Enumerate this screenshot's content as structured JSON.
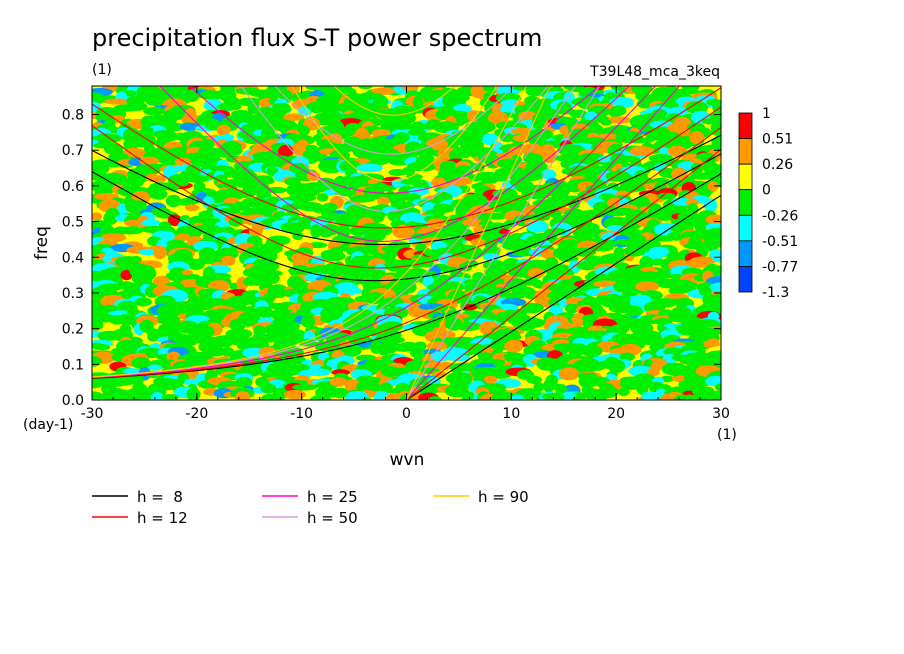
{
  "header": {
    "title": "precipitation flux S-T power spectrum",
    "units": "(1)",
    "run_name": "T39L48_mca_3keq"
  },
  "chart_data": {
    "type": "heatmap",
    "title": "precipitation flux S-T power spectrum",
    "xlabel": "wvn",
    "ylabel": "freq",
    "x_unit": "(1)",
    "y_unit": "(day-1)",
    "xlim": [
      -30,
      30
    ],
    "ylim": [
      0,
      0.88
    ],
    "xticks": [
      "-30",
      "-20",
      "-10",
      "0",
      "10",
      "20",
      "30"
    ],
    "yticks": [
      "0.0",
      "0.1",
      "0.2",
      "0.3",
      "0.4",
      "0.5",
      "0.6",
      "0.7",
      "0.8"
    ],
    "grid": false,
    "colorbar": {
      "labels": [
        "1",
        "0.51",
        "0.26",
        "0",
        "-0.26",
        "-0.51",
        "-0.77",
        "-1.3"
      ],
      "colors": [
        "#ff0000",
        "#ff9900",
        "#ffff00",
        "#00ee00",
        "#00ffff",
        "#0099ff",
        "#0044ff"
      ]
    },
    "field_color_weights": {
      "#ffff00": 0.42,
      "#00ee00": 0.4,
      "#ff9900": 0.09,
      "#00ffff": 0.07,
      "#0099ff": 0.01,
      "#ff0000": 0.01
    },
    "dispersion_curves": [
      {
        "h": 8,
        "color": "#000000"
      },
      {
        "h": 12,
        "color": "#ff0000"
      },
      {
        "h": 25,
        "color": "#ff00cc"
      },
      {
        "h": 50,
        "color": "#dd99dd"
      },
      {
        "h": 90,
        "color": "#ffcc00"
      }
    ]
  },
  "legend": [
    {
      "label": "h =  8",
      "color": "#000000"
    },
    {
      "label": "h = 12",
      "color": "#ff0000"
    },
    {
      "label": "h = 25",
      "color": "#ff00cc"
    },
    {
      "label": "h = 50",
      "color": "#dd99dd"
    },
    {
      "label": "h = 90",
      "color": "#ffcc00"
    }
  ]
}
